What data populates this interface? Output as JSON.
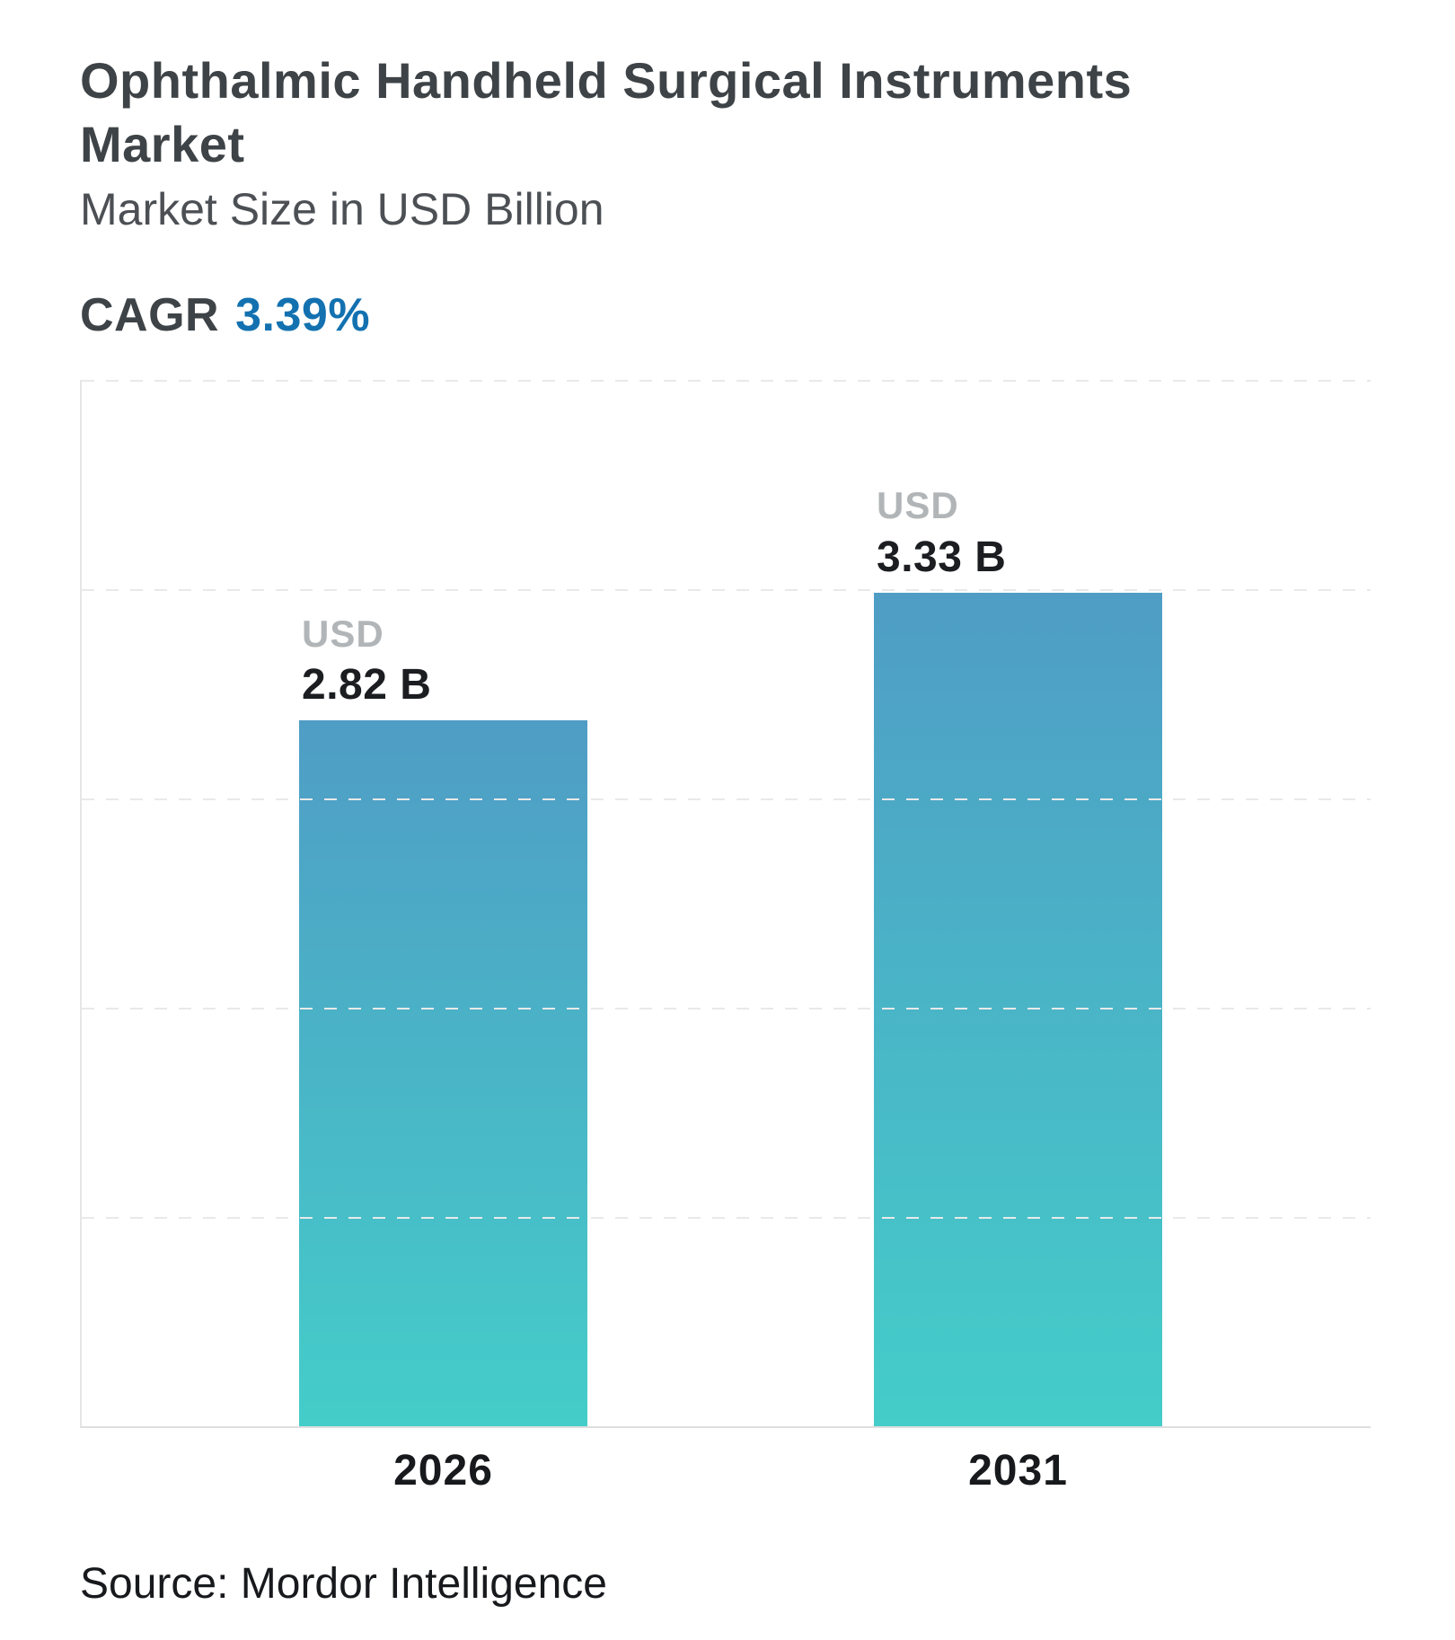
{
  "header": {
    "title": "Ophthalmic Handheld Surgical Instruments Market",
    "subtitle": "Market Size in USD Billion",
    "cagr_label": "CAGR",
    "cagr_value": "3.39%"
  },
  "footer": {
    "source": "Source: Mordor Intelligence"
  },
  "colors": {
    "accent_blue": "#1371b0",
    "bar_gradient_top": "#4f9dc5",
    "bar_gradient_bottom": "#44cdc9",
    "title_text": "#3e4347",
    "usd_label_gray": "#b2b5b7"
  },
  "chart_data": {
    "type": "bar",
    "title": "Ophthalmic Handheld Surgical Instruments Market",
    "subtitle": "Market Size in USD Billion",
    "unit": "USD Billion",
    "categories": [
      "2026",
      "2031"
    ],
    "values": [
      2.82,
      3.33
    ],
    "bar_labels": [
      {
        "prefix": "USD",
        "value": "2.82 B"
      },
      {
        "prefix": "USD",
        "value": "3.33 B"
      }
    ],
    "cagr_percent": 3.39,
    "ylim": [
      0,
      4.18
    ],
    "grid": "horizontal-dashed",
    "gridline_count": 5,
    "legend": "none",
    "xlabel": "",
    "ylabel": ""
  }
}
